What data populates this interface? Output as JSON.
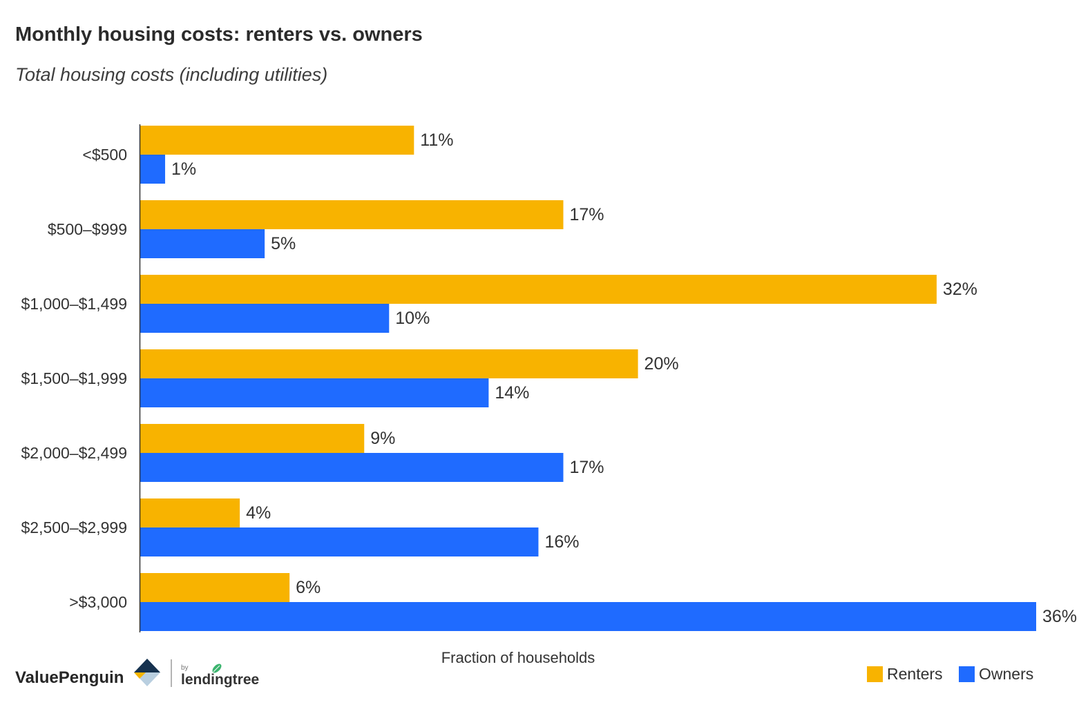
{
  "chart_data": {
    "type": "bar",
    "orientation": "horizontal",
    "title": "Monthly housing costs: renters vs. owners",
    "subtitle": "Total housing costs (including utilities)",
    "xlabel": "Fraction of households",
    "ylabel": "",
    "categories": [
      "<$500",
      "$500–$999",
      "$1,000–$1,499",
      "$1,500–$1,999",
      "$2,000–$2,499",
      "$2,500–$2,999",
      ">$3,000"
    ],
    "series": [
      {
        "name": "Renters",
        "color": "#F8B300",
        "values": [
          11,
          17,
          32,
          20,
          9,
          4,
          6
        ]
      },
      {
        "name": "Owners",
        "color": "#1F6BFF",
        "values": [
          1,
          5,
          10,
          14,
          17,
          16,
          36
        ]
      }
    ],
    "value_suffix": "%",
    "xlim": [
      0,
      36
    ],
    "grid": false,
    "legend": "bottom-right"
  },
  "branding": {
    "logo_name": "ValuePenguin",
    "by_label": "by",
    "partner_name": "lendingtree",
    "icon_colors": {
      "navy": "#16324F",
      "light_blue": "#B9CFE0",
      "yellow": "#F6B400",
      "leaf_green": "#3BB46E"
    }
  }
}
